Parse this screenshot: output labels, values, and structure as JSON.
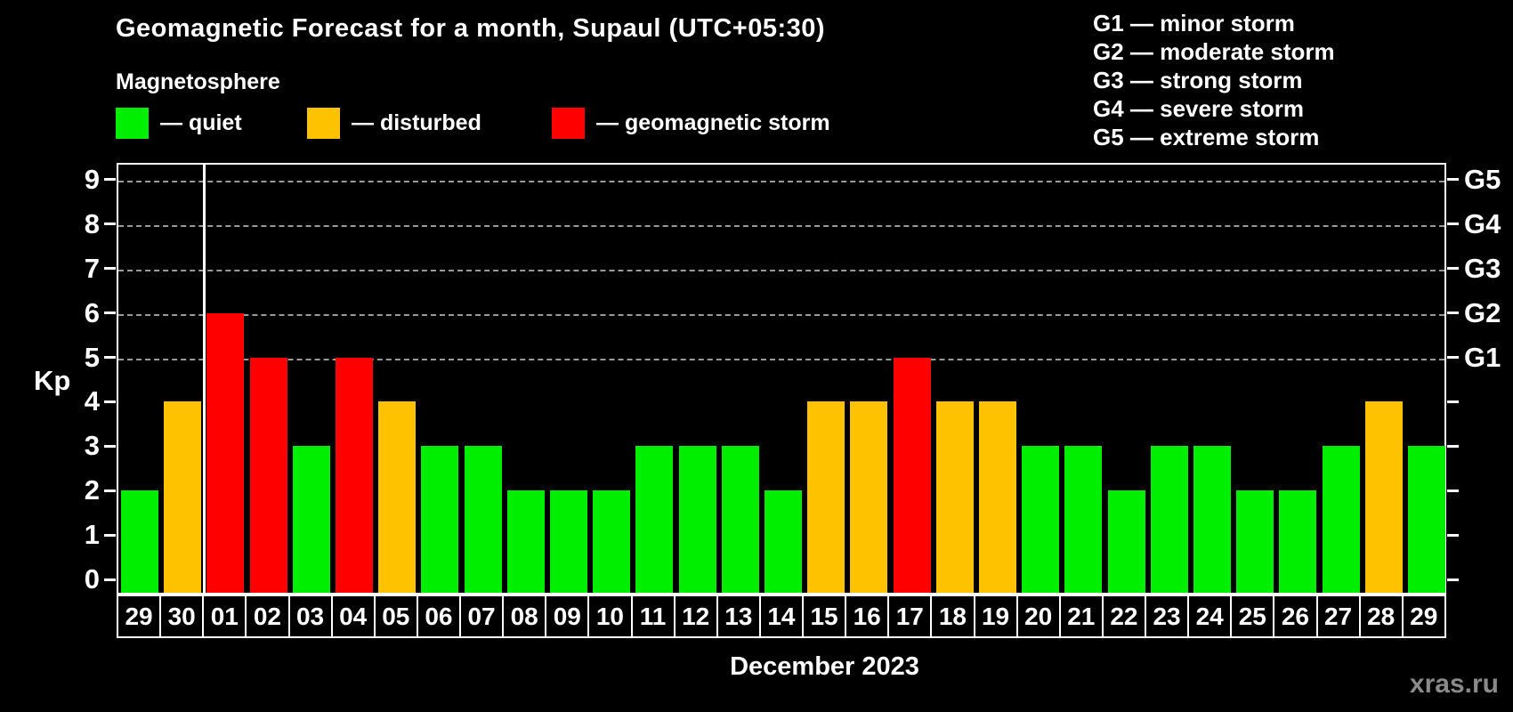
{
  "title": "Geomagnetic Forecast for a month, Supaul (UTC+05:30)",
  "subtitle": "Magnetosphere",
  "legend": {
    "items": [
      {
        "key": "quiet",
        "label": "— quiet"
      },
      {
        "key": "disturbed",
        "label": "— disturbed"
      },
      {
        "key": "storm",
        "label": "— geomagnetic storm"
      }
    ]
  },
  "g_legend": [
    "G1 — minor storm",
    "G2 — moderate storm",
    "G3 — strong storm",
    "G4 — severe storm",
    "G5 — extreme storm"
  ],
  "colors": {
    "quiet": "#00ee00",
    "disturbed": "#ffc200",
    "storm": "#ff0000",
    "grid": "#9a9a9a",
    "axis": "#ffffff",
    "background": "#000000",
    "watermark": "#8a8a8a"
  },
  "chart_data": {
    "type": "bar",
    "title": "Geomagnetic Forecast for a month, Supaul (UTC+05:30)",
    "xlabel": "December 2023",
    "ylabel": "Kp",
    "ylim": [
      0,
      9.4
    ],
    "yticks": [
      0,
      1,
      2,
      3,
      4,
      5,
      6,
      7,
      8,
      9
    ],
    "gridlines_at": [
      5,
      6,
      7,
      8,
      9
    ],
    "grid_style": "dashed",
    "legend_position": "top",
    "right_axis_labels": [
      {
        "value": 5,
        "label": "G1"
      },
      {
        "value": 6,
        "label": "G2"
      },
      {
        "value": 7,
        "label": "G3"
      },
      {
        "value": 8,
        "label": "G4"
      },
      {
        "value": 9,
        "label": "G5"
      }
    ],
    "separator_before_index": 2,
    "categories": [
      "29",
      "30",
      "01",
      "02",
      "03",
      "04",
      "05",
      "06",
      "07",
      "08",
      "09",
      "10",
      "11",
      "12",
      "13",
      "14",
      "15",
      "16",
      "17",
      "18",
      "19",
      "20",
      "21",
      "22",
      "23",
      "24",
      "25",
      "26",
      "27",
      "28",
      "29"
    ],
    "values": [
      2,
      4,
      6,
      5,
      3,
      5,
      4,
      3,
      3,
      2,
      2,
      2,
      3,
      3,
      3,
      2,
      4,
      4,
      5,
      4,
      4,
      3,
      3,
      2,
      3,
      3,
      2,
      2,
      3,
      4,
      3
    ],
    "statuses": [
      "quiet",
      "disturbed",
      "storm",
      "storm",
      "quiet",
      "storm",
      "disturbed",
      "quiet",
      "quiet",
      "quiet",
      "quiet",
      "quiet",
      "quiet",
      "quiet",
      "quiet",
      "quiet",
      "disturbed",
      "disturbed",
      "storm",
      "disturbed",
      "disturbed",
      "quiet",
      "quiet",
      "quiet",
      "quiet",
      "quiet",
      "quiet",
      "quiet",
      "quiet",
      "disturbed",
      "quiet"
    ]
  },
  "watermark": "xras.ru"
}
